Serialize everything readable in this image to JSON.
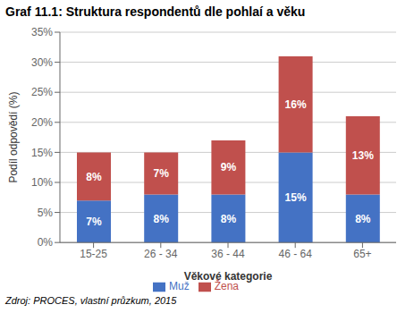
{
  "chart_data": {
    "type": "bar",
    "stacked": true,
    "title": "Graf 11.1: Struktura respondentů dle pohlaí a věku",
    "xlabel": "Věkové kategorie",
    "ylabel": "Podíl odpovědí (%)",
    "categories": [
      "15-25",
      "26 - 34",
      "36 - 44",
      "46 - 64",
      "65+"
    ],
    "series": [
      {
        "name": "Muž",
        "color": "#4472C4",
        "values": [
          7,
          8,
          8,
          15,
          8
        ],
        "value_labels": [
          "7%",
          "8%",
          "8%",
          "15%",
          "8%"
        ]
      },
      {
        "name": "Žena",
        "color": "#C0504D",
        "values": [
          8,
          7,
          9,
          16,
          13
        ],
        "value_labels": [
          "8%",
          "7%",
          "9%",
          "16%",
          "13%"
        ]
      }
    ],
    "ylim": [
      0,
      35
    ],
    "yticks": [
      {
        "value": 0,
        "label": "0%"
      },
      {
        "value": 5,
        "label": "5%"
      },
      {
        "value": 10,
        "label": "10%"
      },
      {
        "value": 15,
        "label": "15%"
      },
      {
        "value": 20,
        "label": "20%"
      },
      {
        "value": 25,
        "label": "25%"
      },
      {
        "value": 30,
        "label": "30%"
      },
      {
        "value": 35,
        "label": "35%"
      }
    ],
    "grid": true,
    "legend": "bottom",
    "data_labels": true,
    "annotations": [
      "Zdroj: PROCES, vlastní průzkum, 2015"
    ]
  }
}
